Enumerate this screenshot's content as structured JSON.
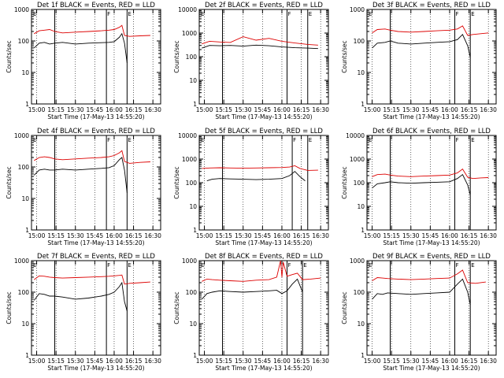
{
  "figure": {
    "x_tick_labels": [
      "15:00",
      "15:15",
      "15:30",
      "15:45",
      "16:00",
      "16:15",
      "16:30"
    ],
    "y_tick_labels": [
      "1",
      "10",
      "100",
      "1000",
      "10000"
    ],
    "xlabel": "Start Time (17-May-13 14:55:20)",
    "ylabel": "Counts/sec",
    "flag_labels": {
      "left": "E",
      "right": "F"
    }
  },
  "colors": {
    "black_series": "#000000",
    "red_series": "#dd0000",
    "frame": "#000000"
  },
  "chart_data": [
    {
      "type": "line",
      "title": "Det 1f BLACK = Events, RED = LLD",
      "ylabel": "Counts/sec",
      "xlabel": "Start Time (17-May-13 14:55:20)",
      "xlim": [
        "14:56",
        "16:36"
      ],
      "ylim": [
        1,
        1000
      ],
      "y_scale": "log",
      "grid": false,
      "event_lines": [
        "15:14",
        "15:54",
        "16:10"
      ],
      "series": [
        {
          "color": "black",
          "x": [
            "14:58",
            "15:02",
            "15:06",
            "15:10",
            "15:14",
            "15:20",
            "15:30",
            "15:40",
            "15:50",
            "15:56",
            "16:00",
            "16:04",
            "16:06",
            "16:08",
            "16:10"
          ],
          "values": [
            60,
            85,
            90,
            80,
            85,
            90,
            80,
            85,
            88,
            90,
            95,
            130,
            170,
            85,
            20
          ]
        },
        {
          "color": "red",
          "x": [
            "14:58",
            "15:02",
            "15:06",
            "15:10",
            "15:14",
            "15:20",
            "15:30",
            "15:40",
            "15:50",
            "15:56",
            "16:00",
            "16:04",
            "16:06",
            "16:08",
            "16:12",
            "16:20",
            "16:28"
          ],
          "values": [
            170,
            210,
            220,
            230,
            200,
            180,
            190,
            200,
            210,
            220,
            230,
            270,
            310,
            150,
            140,
            145,
            150
          ]
        }
      ]
    },
    {
      "type": "line",
      "title": "Det 2f BLACK = Events, RED = LLD",
      "ylabel": "Counts/sec",
      "xlabel": "Start Time (17-May-13 14:55:20)",
      "xlim": [
        "14:56",
        "16:36"
      ],
      "ylim": [
        1,
        10000
      ],
      "y_scale": "log",
      "grid": false,
      "event_lines": [
        "15:14",
        "16:04",
        "16:20"
      ],
      "series": [
        {
          "color": "black",
          "x": [
            "14:58",
            "15:04",
            "15:12",
            "15:20",
            "15:30",
            "15:40",
            "15:50",
            "16:00",
            "16:10",
            "16:20",
            "16:28"
          ],
          "values": [
            230,
            300,
            290,
            300,
            280,
            310,
            290,
            260,
            240,
            230,
            220
          ]
        },
        {
          "color": "red",
          "x": [
            "14:58",
            "15:04",
            "15:12",
            "15:20",
            "15:30",
            "15:40",
            "15:50",
            "16:00",
            "16:10",
            "16:20",
            "16:28"
          ],
          "values": [
            350,
            450,
            420,
            400,
            700,
            500,
            600,
            450,
            380,
            330,
            310
          ]
        }
      ]
    },
    {
      "type": "line",
      "title": "Det 3f BLACK = Events, RED = LLD",
      "ylabel": "Counts/sec",
      "xlabel": "Start Time (17-May-13 14:55:20)",
      "xlim": [
        "14:56",
        "16:36"
      ],
      "ylim": [
        1,
        1000
      ],
      "y_scale": "log",
      "grid": false,
      "event_lines": [
        "15:14",
        "16:04",
        "16:16"
      ],
      "series": [
        {
          "color": "black",
          "x": [
            "15:00",
            "15:04",
            "15:10",
            "15:14",
            "15:20",
            "15:30",
            "15:40",
            "15:50",
            "16:00",
            "16:06",
            "16:10",
            "16:14",
            "16:16"
          ],
          "values": [
            60,
            85,
            90,
            100,
            85,
            80,
            85,
            90,
            95,
            110,
            160,
            70,
            30
          ]
        },
        {
          "color": "red",
          "x": [
            "15:00",
            "15:04",
            "15:10",
            "15:14",
            "15:20",
            "15:30",
            "15:40",
            "15:50",
            "16:00",
            "16:06",
            "16:10",
            "16:14",
            "16:18",
            "16:24",
            "16:30"
          ],
          "values": [
            180,
            230,
            240,
            220,
            200,
            190,
            200,
            210,
            220,
            240,
            300,
            150,
            160,
            170,
            180
          ]
        }
      ]
    },
    {
      "type": "line",
      "title": "Det 4f BLACK = Events, RED = LLD",
      "ylabel": "Counts/sec",
      "xlabel": "Start Time (17-May-13 14:55:20)",
      "xlim": [
        "14:56",
        "16:36"
      ],
      "ylim": [
        1,
        1000
      ],
      "y_scale": "log",
      "grid": false,
      "event_lines": [
        "15:14",
        "15:54",
        "16:10"
      ],
      "series": [
        {
          "color": "black",
          "x": [
            "14:58",
            "15:02",
            "15:06",
            "15:10",
            "15:14",
            "15:20",
            "15:30",
            "15:40",
            "15:50",
            "15:56",
            "16:00",
            "16:04",
            "16:06",
            "16:08",
            "16:10"
          ],
          "values": [
            55,
            80,
            85,
            80,
            80,
            85,
            80,
            85,
            90,
            95,
            110,
            170,
            200,
            80,
            15
          ]
        },
        {
          "color": "red",
          "x": [
            "14:58",
            "15:02",
            "15:06",
            "15:10",
            "15:14",
            "15:20",
            "15:30",
            "15:40",
            "15:50",
            "15:56",
            "16:00",
            "16:04",
            "16:06",
            "16:08",
            "16:12",
            "16:20",
            "16:28"
          ],
          "values": [
            160,
            200,
            210,
            200,
            180,
            170,
            180,
            190,
            200,
            210,
            230,
            280,
            330,
            150,
            130,
            140,
            145
          ]
        }
      ]
    },
    {
      "type": "line",
      "title": "Det 5f BLACK = Events, RED = LLD",
      "ylabel": "Counts/sec",
      "xlabel": "Start Time (17-May-13 14:55:20)",
      "xlim": [
        "14:56",
        "16:36"
      ],
      "ylim": [
        1,
        10000
      ],
      "y_scale": "log",
      "grid": false,
      "event_lines": [
        "15:14",
        "16:08",
        "16:20"
      ],
      "series": [
        {
          "color": "black",
          "x": [
            "15:02",
            "15:06",
            "15:12",
            "15:20",
            "15:30",
            "15:40",
            "15:50",
            "16:00",
            "16:06",
            "16:10",
            "16:14",
            "16:18"
          ],
          "values": [
            120,
            140,
            150,
            145,
            140,
            135,
            140,
            150,
            200,
            300,
            180,
            120
          ]
        },
        {
          "color": "red",
          "x": [
            "14:58",
            "15:04",
            "15:12",
            "15:20",
            "15:30",
            "15:40",
            "15:50",
            "16:00",
            "16:06",
            "16:10",
            "16:14",
            "16:20",
            "16:28"
          ],
          "values": [
            400,
            420,
            430,
            420,
            410,
            420,
            430,
            440,
            460,
            520,
            400,
            330,
            340
          ]
        }
      ]
    },
    {
      "type": "line",
      "title": "Det 6f BLACK = Events, RED = LLD",
      "ylabel": "Counts/sec",
      "xlabel": "Start Time (17-May-13 14:55:20)",
      "xlim": [
        "14:56",
        "16:36"
      ],
      "ylim": [
        1,
        10000
      ],
      "y_scale": "log",
      "grid": false,
      "event_lines": [
        "15:14",
        "16:04",
        "16:16"
      ],
      "series": [
        {
          "color": "black",
          "x": [
            "15:00",
            "15:04",
            "15:10",
            "15:14",
            "15:20",
            "15:30",
            "15:40",
            "15:50",
            "16:00",
            "16:06",
            "16:10",
            "16:14",
            "16:16"
          ],
          "values": [
            60,
            90,
            100,
            110,
            100,
            95,
            100,
            105,
            110,
            150,
            220,
            80,
            30
          ]
        },
        {
          "color": "red",
          "x": [
            "15:00",
            "15:04",
            "15:10",
            "15:14",
            "15:20",
            "15:30",
            "15:40",
            "15:50",
            "16:00",
            "16:06",
            "16:10",
            "16:14",
            "16:18",
            "16:24",
            "16:30"
          ],
          "values": [
            180,
            220,
            230,
            210,
            190,
            180,
            190,
            200,
            210,
            260,
            380,
            170,
            150,
            160,
            165
          ]
        }
      ]
    },
    {
      "type": "line",
      "title": "Det 7f BLACK = Events, RED = LLD",
      "ylabel": "Counts/sec",
      "xlabel": "Start Time (17-May-13 14:55:20)",
      "xlim": [
        "14:56",
        "16:36"
      ],
      "ylim": [
        1,
        1000
      ],
      "y_scale": "log",
      "grid": false,
      "event_lines": [
        "15:14",
        "15:54",
        "16:10"
      ],
      "series": [
        {
          "color": "black",
          "x": [
            "14:58",
            "15:02",
            "15:06",
            "15:10",
            "15:14",
            "15:20",
            "15:30",
            "15:40",
            "15:50",
            "15:56",
            "16:00",
            "16:04",
            "16:06",
            "16:08",
            "16:10"
          ],
          "values": [
            55,
            90,
            85,
            75,
            75,
            70,
            60,
            65,
            75,
            85,
            100,
            150,
            200,
            50,
            25
          ]
        },
        {
          "color": "red",
          "x": [
            "14:58",
            "15:02",
            "15:06",
            "15:10",
            "15:14",
            "15:20",
            "15:30",
            "15:40",
            "15:50",
            "15:56",
            "16:00",
            "16:04",
            "16:06",
            "16:08",
            "16:12",
            "16:20",
            "16:28"
          ],
          "values": [
            250,
            330,
            320,
            300,
            290,
            280,
            290,
            300,
            310,
            320,
            330,
            340,
            350,
            180,
            190,
            200,
            210
          ]
        }
      ]
    },
    {
      "type": "line",
      "title": "Det 8f BLACK = Events, RED = LLD",
      "ylabel": "Counts/sec",
      "xlabel": "Start Time (17-May-13 14:55:20)",
      "xlim": [
        "14:56",
        "16:36"
      ],
      "ylim": [
        1,
        1000
      ],
      "y_scale": "log",
      "grid": false,
      "event_lines": [
        "15:14",
        "16:04",
        "16:16"
      ],
      "series": [
        {
          "color": "black",
          "x": [
            "14:58",
            "15:02",
            "15:06",
            "15:12",
            "15:20",
            "15:30",
            "15:40",
            "15:50",
            "15:56",
            "16:00",
            "16:04",
            "16:08",
            "16:12",
            "16:16"
          ],
          "values": [
            60,
            90,
            100,
            110,
            105,
            100,
            105,
            110,
            115,
            90,
            110,
            180,
            260,
            100
          ]
        },
        {
          "color": "red",
          "x": [
            "14:58",
            "15:02",
            "15:06",
            "15:12",
            "15:20",
            "15:30",
            "15:40",
            "15:50",
            "15:56",
            "15:59",
            "16:00",
            "16:01",
            "16:04",
            "16:08",
            "16:12",
            "16:16",
            "16:22",
            "16:30"
          ],
          "values": [
            220,
            260,
            250,
            240,
            230,
            220,
            240,
            250,
            300,
            1000,
            300,
            900,
            320,
            360,
            400,
            250,
            260,
            280
          ]
        }
      ]
    },
    {
      "type": "line",
      "title": "Det 9f BLACK = Events, RED = LLD",
      "ylabel": "Counts/sec",
      "xlabel": "Start Time (17-May-13 14:55:20)",
      "xlim": [
        "14:56",
        "16:36"
      ],
      "ylim": [
        1,
        1000
      ],
      "y_scale": "log",
      "grid": false,
      "event_lines": [
        "15:14",
        "16:04",
        "16:16"
      ],
      "series": [
        {
          "color": "black",
          "x": [
            "15:00",
            "15:04",
            "15:08",
            "15:12",
            "15:20",
            "15:30",
            "15:40",
            "15:50",
            "16:00",
            "16:06",
            "16:10",
            "16:14",
            "16:16"
          ],
          "values": [
            60,
            90,
            85,
            95,
            90,
            85,
            90,
            95,
            100,
            180,
            260,
            100,
            40
          ]
        },
        {
          "color": "red",
          "x": [
            "15:00",
            "15:04",
            "15:08",
            "15:12",
            "15:20",
            "15:30",
            "15:40",
            "15:50",
            "16:00",
            "16:06",
            "16:10",
            "16:14",
            "16:20",
            "16:28"
          ],
          "values": [
            230,
            290,
            280,
            270,
            260,
            250,
            260,
            270,
            280,
            380,
            500,
            200,
            190,
            210
          ]
        }
      ]
    }
  ]
}
